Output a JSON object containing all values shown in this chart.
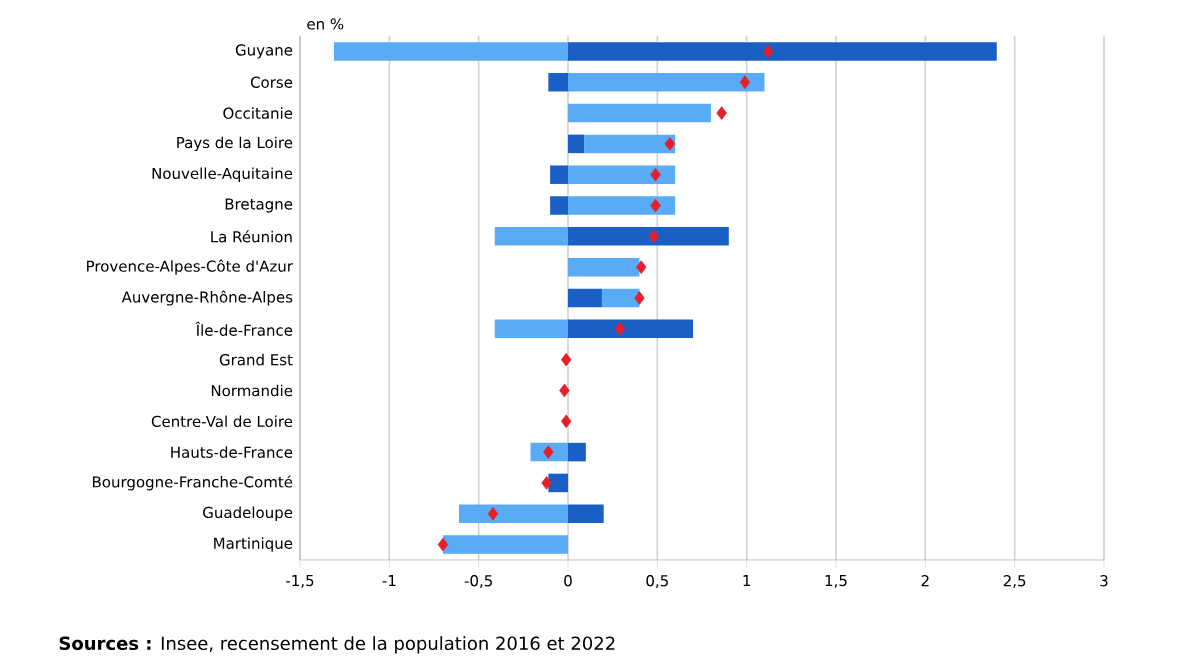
{
  "chart_data": {
    "type": "bar",
    "orientation": "horizontal",
    "stacked": true,
    "categories": [
      "Guyane",
      "Corse",
      "Occitanie",
      "Pays de la Loire",
      "Nouvelle-Aquitaine",
      "Bretagne",
      "La Réunion",
      "Provence-Alpes-Côte d'Azur",
      "Auvergne-Rhône-Alpes",
      "Île-de-France",
      "Grand Est",
      "Normandie",
      "Centre-Val de Loire",
      "Hauts-de-France",
      "Bourgogne-Franche-Comté",
      "Guadeloupe",
      "Martinique"
    ],
    "series": [
      {
        "color": "#1a5fc4",
        "values": [
          2.4,
          -0.11,
          0,
          0.09,
          -0.1,
          -0.1,
          0.9,
          0,
          0.19,
          0.7,
          0,
          0,
          0,
          0.1,
          -0.11,
          0.2,
          0
        ]
      },
      {
        "color": "#5aabf5",
        "values": [
          -1.31,
          1.1,
          0.8,
          0.51,
          0.6,
          0.6,
          -0.41,
          0.4,
          0.21,
          -0.41,
          0,
          0,
          0,
          -0.21,
          0,
          -0.61,
          -0.7
        ]
      },
      {
        "type": "scatter",
        "color": "#e3202c",
        "marker": "diamond",
        "values": [
          1.12,
          0.99,
          0.86,
          0.57,
          0.49,
          0.49,
          0.48,
          0.41,
          0.4,
          0.29,
          -0.01,
          -0.02,
          -0.01,
          -0.11,
          -0.12,
          -0.42,
          -0.7
        ]
      }
    ],
    "xlim": [
      -1.5,
      3
    ],
    "xticks": [
      {
        "value": -1.5,
        "label": "-1,5"
      },
      {
        "value": -1,
        "label": "-1"
      },
      {
        "value": -0.5,
        "label": "-0,5"
      },
      {
        "value": 0,
        "label": "0"
      },
      {
        "value": 0.5,
        "label": "0,5"
      },
      {
        "value": 1,
        "label": "1"
      },
      {
        "value": 1.5,
        "label": "1,5"
      },
      {
        "value": 2,
        "label": "2"
      },
      {
        "value": 2.5,
        "label": "2,5"
      },
      {
        "value": 3,
        "label": "3"
      }
    ],
    "grid": "x",
    "annotations": [
      "en %",
      "**Sources :** Insee, recensement de la population 2016 et 2022"
    ]
  }
}
